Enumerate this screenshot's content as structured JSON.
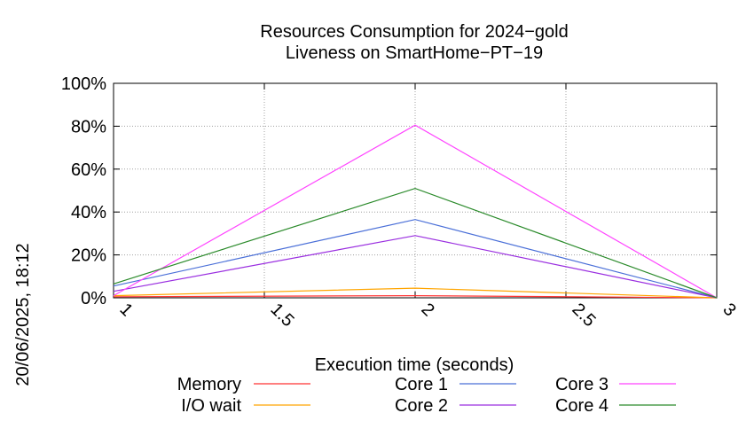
{
  "chart_data": {
    "type": "line",
    "title": [
      "Resources Consumption for 2024−gold",
      "Liveness on SmartHome−PT−19"
    ],
    "xlabel": "Execution time (seconds)",
    "ylabel": "",
    "side_label": "20/06/2025, 18:12",
    "xlim": [
      1,
      3
    ],
    "ylim": [
      0,
      100
    ],
    "x_ticks": [
      1,
      1.5,
      2,
      2.5,
      3
    ],
    "x_tick_labels": [
      "1",
      "1.5",
      "2",
      "2.5",
      "3"
    ],
    "y_ticks": [
      0,
      20,
      40,
      60,
      80,
      100
    ],
    "y_tick_labels": [
      "0%",
      "20%",
      "40%",
      "60%",
      "80%",
      "100%"
    ],
    "grid": true,
    "legend_position": "bottom",
    "x": [
      1,
      2,
      3
    ],
    "series": [
      {
        "name": "Memory",
        "color": "#ff3333",
        "values": [
          0.5,
          1,
          0
        ]
      },
      {
        "name": "I/O wait",
        "color": "#ffa500",
        "values": [
          1,
          4.5,
          0
        ]
      },
      {
        "name": "Core 1",
        "color": "#4a6fd8",
        "values": [
          5.5,
          36.5,
          0
        ]
      },
      {
        "name": "Core 2",
        "color": "#9a2ee0",
        "values": [
          3,
          29,
          0
        ]
      },
      {
        "name": "Core 3",
        "color": "#ff44ff",
        "values": [
          1,
          80.5,
          0
        ]
      },
      {
        "name": "Core 4",
        "color": "#2a8a2a",
        "values": [
          6.5,
          51,
          0
        ]
      }
    ]
  }
}
